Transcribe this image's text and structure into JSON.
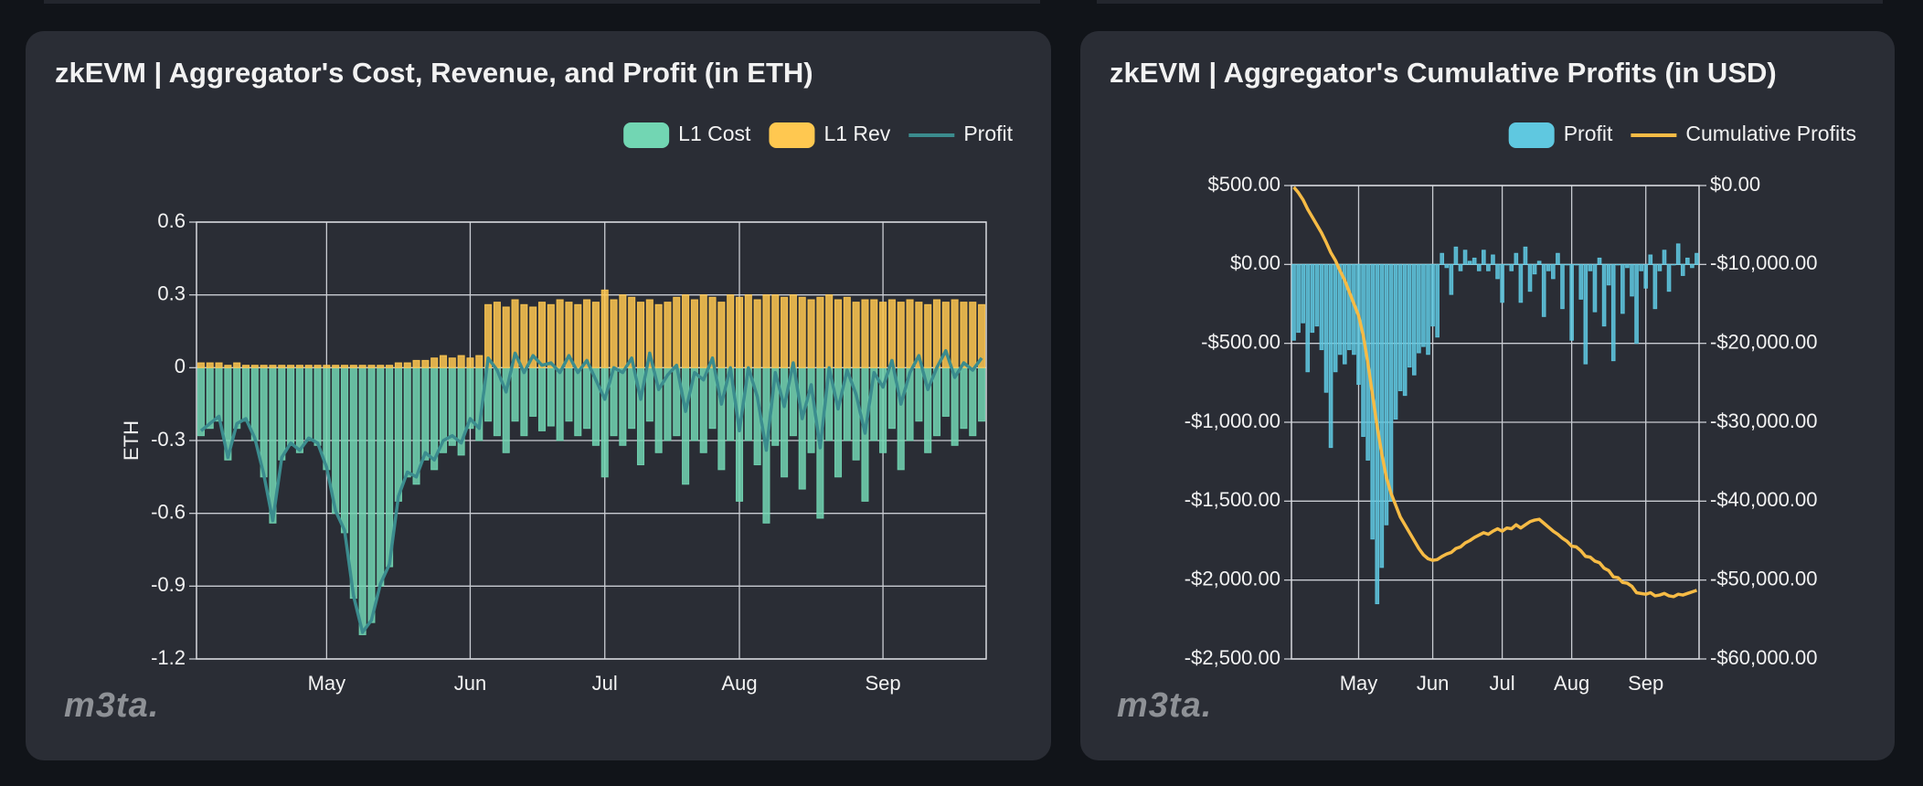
{
  "chart_data": [
    {
      "type": "combo",
      "title": "zkEVM | Aggregator's Cost, Revenue, and Profit (in ETH)",
      "y_label": "ETH",
      "logo": "m3ta.",
      "categories": [
        null,
        null,
        null,
        null,
        null,
        null,
        null,
        null,
        null,
        null,
        null,
        null,
        null,
        null,
        "May",
        null,
        null,
        null,
        null,
        null,
        null,
        null,
        null,
        null,
        null,
        null,
        null,
        null,
        null,
        null,
        "Jun",
        null,
        null,
        null,
        null,
        null,
        null,
        null,
        null,
        null,
        null,
        null,
        null,
        null,
        null,
        "Jul",
        null,
        null,
        null,
        null,
        null,
        null,
        null,
        null,
        null,
        null,
        null,
        null,
        null,
        null,
        "Aug",
        null,
        null,
        null,
        null,
        null,
        null,
        null,
        null,
        null,
        null,
        null,
        null,
        null,
        null,
        null,
        "Sep",
        null,
        null,
        null,
        null,
        null,
        null,
        null,
        null,
        null,
        null,
        null
      ],
      "ylim": [
        -1.2,
        0.6
      ],
      "yticks": [
        -1.2,
        -0.9,
        -0.6,
        -0.3,
        0,
        0.3,
        0.6
      ],
      "grid": true,
      "legend": "top-right",
      "series": [
        {
          "name": "L1 Cost",
          "type": "bar",
          "color": "#72d6b3",
          "values": [
            -0.28,
            -0.25,
            -0.22,
            -0.38,
            -0.25,
            -0.22,
            -0.3,
            -0.45,
            -0.64,
            -0.38,
            -0.32,
            -0.35,
            -0.3,
            -0.32,
            -0.42,
            -0.6,
            -0.68,
            -0.95,
            -1.1,
            -1.05,
            -0.9,
            -0.82,
            -0.55,
            -0.45,
            -0.48,
            -0.38,
            -0.42,
            -0.35,
            -0.32,
            -0.36,
            -0.25,
            -0.3,
            -0.22,
            -0.28,
            -0.35,
            -0.22,
            -0.28,
            -0.2,
            -0.26,
            -0.24,
            -0.3,
            -0.22,
            -0.28,
            -0.25,
            -0.32,
            -0.45,
            -0.28,
            -0.32,
            -0.25,
            -0.4,
            -0.22,
            -0.35,
            -0.3,
            -0.28,
            -0.48,
            -0.3,
            -0.35,
            -0.25,
            -0.42,
            -0.3,
            -0.55,
            -0.3,
            -0.4,
            -0.64,
            -0.32,
            -0.45,
            -0.28,
            -0.5,
            -0.35,
            -0.62,
            -0.3,
            -0.45,
            -0.3,
            -0.38,
            -0.55,
            -0.3,
            -0.35,
            -0.25,
            -0.42,
            -0.3,
            -0.22,
            -0.35,
            -0.28,
            -0.2,
            -0.32,
            -0.25,
            -0.28,
            -0.22
          ]
        },
        {
          "name": "L1 Rev",
          "type": "bar",
          "color": "#ffc850",
          "values": [
            0.02,
            0.02,
            0.02,
            0.01,
            0.02,
            0.01,
            0.01,
            0.01,
            0.01,
            0.01,
            0.01,
            0.01,
            0.01,
            0.01,
            0.01,
            0.01,
            0.01,
            0.01,
            0.01,
            0.01,
            0.01,
            0.01,
            0.02,
            0.02,
            0.03,
            0.03,
            0.04,
            0.05,
            0.04,
            0.05,
            0.04,
            0.05,
            0.26,
            0.27,
            0.25,
            0.28,
            0.26,
            0.25,
            0.27,
            0.26,
            0.28,
            0.27,
            0.26,
            0.28,
            0.27,
            0.32,
            0.28,
            0.3,
            0.29,
            0.27,
            0.28,
            0.26,
            0.27,
            0.29,
            0.3,
            0.28,
            0.3,
            0.29,
            0.27,
            0.3,
            0.29,
            0.3,
            0.28,
            0.3,
            0.3,
            0.29,
            0.3,
            0.29,
            0.28,
            0.29,
            0.3,
            0.28,
            0.29,
            0.27,
            0.28,
            0.28,
            0.27,
            0.28,
            0.27,
            0.28,
            0.27,
            0.26,
            0.28,
            0.27,
            0.28,
            0.27,
            0.27,
            0.26
          ]
        },
        {
          "name": "Profit",
          "type": "line",
          "color": "#3b8c8e",
          "values": [
            -0.26,
            -0.23,
            -0.2,
            -0.37,
            -0.23,
            -0.21,
            -0.29,
            -0.44,
            -0.63,
            -0.37,
            -0.31,
            -0.34,
            -0.29,
            -0.31,
            -0.41,
            -0.59,
            -0.67,
            -0.94,
            -1.09,
            -1.04,
            -0.89,
            -0.81,
            -0.53,
            -0.43,
            -0.45,
            -0.35,
            -0.38,
            -0.3,
            -0.28,
            -0.31,
            -0.21,
            -0.25,
            0.04,
            -0.01,
            -0.1,
            0.06,
            -0.02,
            0.05,
            0.01,
            0.02,
            -0.02,
            0.05,
            -0.02,
            0.03,
            -0.05,
            -0.13,
            0,
            -0.02,
            0.04,
            -0.13,
            0.06,
            -0.09,
            -0.03,
            0.01,
            -0.18,
            -0.02,
            -0.05,
            0.04,
            -0.15,
            0,
            -0.26,
            0,
            -0.12,
            -0.34,
            -0.02,
            -0.16,
            0.02,
            -0.21,
            -0.07,
            -0.33,
            0,
            -0.17,
            -0.01,
            -0.11,
            -0.27,
            -0.02,
            -0.08,
            0.03,
            -0.15,
            -0.02,
            0.05,
            -0.09,
            0,
            0.07,
            -0.04,
            0.02,
            -0.01,
            0.04
          ]
        }
      ]
    },
    {
      "type": "combo",
      "title": "zkEVM | Aggregator's Cumulative Profits (in USD)",
      "logo": "m3ta.",
      "categories": [
        null,
        null,
        null,
        null,
        null,
        null,
        null,
        null,
        null,
        null,
        null,
        null,
        null,
        null,
        "May",
        null,
        null,
        null,
        null,
        null,
        null,
        null,
        null,
        null,
        null,
        null,
        null,
        null,
        null,
        null,
        "Jun",
        null,
        null,
        null,
        null,
        null,
        null,
        null,
        null,
        null,
        null,
        null,
        null,
        null,
        null,
        "Jul",
        null,
        null,
        null,
        null,
        null,
        null,
        null,
        null,
        null,
        null,
        null,
        null,
        null,
        null,
        "Aug",
        null,
        null,
        null,
        null,
        null,
        null,
        null,
        null,
        null,
        null,
        null,
        null,
        null,
        null,
        null,
        "Sep",
        null,
        null,
        null,
        null,
        null,
        null,
        null,
        null,
        null,
        null,
        null
      ],
      "ylim": [
        -2500,
        500
      ],
      "yticks": [
        {
          "value": -2500,
          "label": "-$2,500.00"
        },
        {
          "value": -2000,
          "label": "-$2,000.00"
        },
        {
          "value": -1500,
          "label": "-$1,500.00"
        },
        {
          "value": -1000,
          "label": "-$1,000.00"
        },
        {
          "value": -500,
          "label": "-$500.00"
        },
        {
          "value": 0,
          "label": "$0.00"
        },
        {
          "value": 500,
          "label": "$500.00"
        }
      ],
      "y2lim": [
        -60000,
        0
      ],
      "y2ticks": [
        {
          "value": -60000,
          "label": "-$60,000.00"
        },
        {
          "value": -50000,
          "label": "-$50,000.00"
        },
        {
          "value": -40000,
          "label": "-$40,000.00"
        },
        {
          "value": -30000,
          "label": "-$30,000.00"
        },
        {
          "value": -20000,
          "label": "-$20,000.00"
        },
        {
          "value": -10000,
          "label": "-$10,000.00"
        },
        {
          "value": 0,
          "label": "$0.00"
        }
      ],
      "grid": true,
      "legend": "top-right",
      "series": [
        {
          "name": "Profit",
          "type": "bar",
          "color": "#5fc8e0",
          "values": [
            -480,
            -430,
            -370,
            -680,
            -430,
            -390,
            -540,
            -810,
            -1160,
            -680,
            -570,
            -630,
            -540,
            -570,
            -760,
            -1090,
            -1240,
            -1740,
            -2150,
            -1920,
            -1650,
            -1500,
            -980,
            -800,
            -830,
            -650,
            -700,
            -560,
            -520,
            -570,
            -390,
            -460,
            70,
            -20,
            -190,
            110,
            -40,
            90,
            20,
            40,
            -40,
            90,
            -40,
            60,
            -90,
            -240,
            0,
            -40,
            70,
            -240,
            110,
            -170,
            -60,
            20,
            -330,
            -40,
            -90,
            70,
            -280,
            0,
            -480,
            0,
            -220,
            -630,
            -40,
            -300,
            40,
            -390,
            -130,
            -610,
            0,
            -310,
            -20,
            -200,
            -500,
            -40,
            -150,
            60,
            -280,
            -40,
            90,
            -170,
            0,
            130,
            -70,
            40,
            -20,
            70
          ]
        },
        {
          "name": "Cumulative Profits",
          "type": "line",
          "axis": "y2",
          "color": "#f6bb45",
          "values": [
            -200,
            -900,
            -1800,
            -3000,
            -4000,
            -5000,
            -6000,
            -7200,
            -8500,
            -9500,
            -10800,
            -12000,
            -13500,
            -15000,
            -16500,
            -19000,
            -22500,
            -26500,
            -30500,
            -34000,
            -37000,
            -39000,
            -40500,
            -42000,
            -43000,
            -44000,
            -45000,
            -46000,
            -46800,
            -47300,
            -47500,
            -47400,
            -47000,
            -46700,
            -46500,
            -46000,
            -45800,
            -45300,
            -45000,
            -44600,
            -44300,
            -44000,
            -44200,
            -43800,
            -43500,
            -43800,
            -43400,
            -43500,
            -43000,
            -43400,
            -43000,
            -42600,
            -42400,
            -42300,
            -42800,
            -43300,
            -43800,
            -44200,
            -44700,
            -45100,
            -45700,
            -45800,
            -46300,
            -47000,
            -47100,
            -47600,
            -47800,
            -48500,
            -48800,
            -49600,
            -49700,
            -50300,
            -50400,
            -50800,
            -51600,
            -51700,
            -51800,
            -51600,
            -52000,
            -51900,
            -51700,
            -52000,
            -52100,
            -51800,
            -51900,
            -51700,
            -51500,
            -51300
          ]
        }
      ]
    }
  ]
}
